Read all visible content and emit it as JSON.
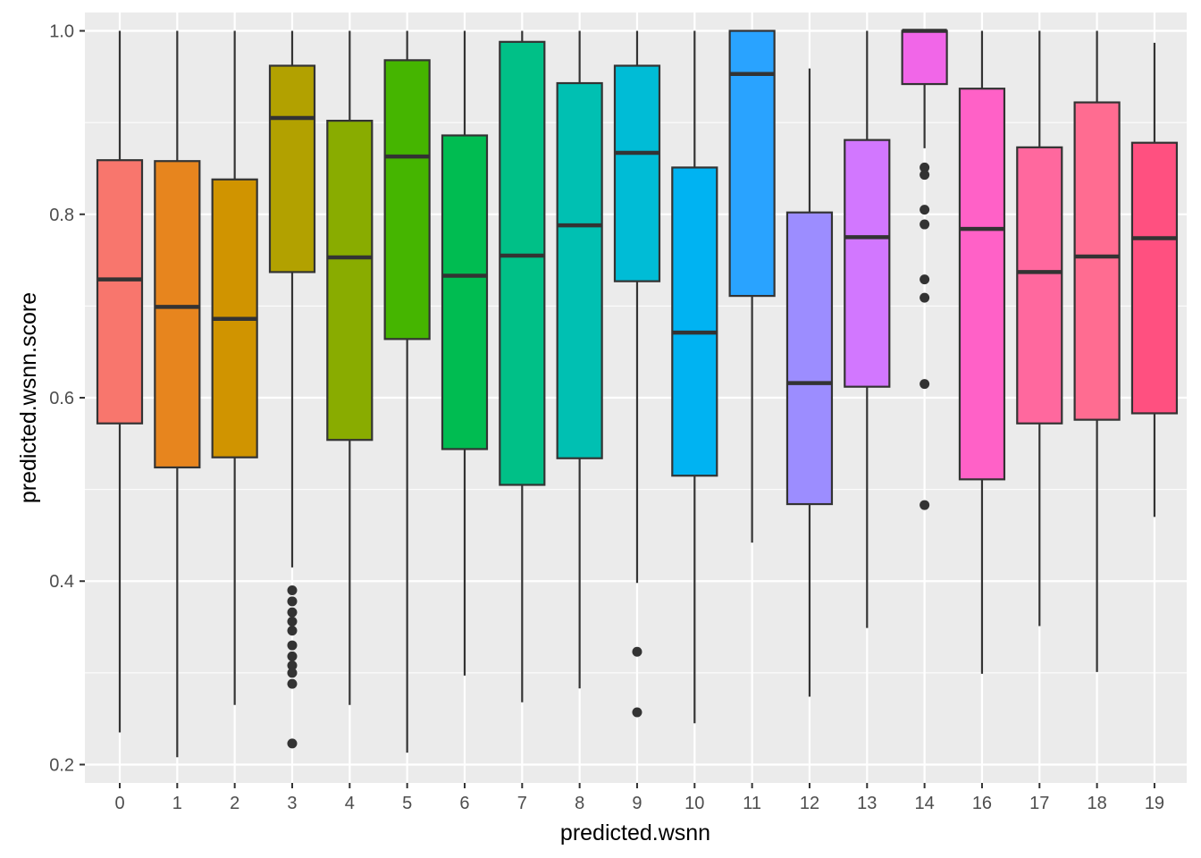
{
  "chart_data": {
    "type": "boxplot",
    "title": "",
    "xlabel": "predicted.wsnn",
    "ylabel": "predicted.wsnn.score",
    "ylim": [
      0.18,
      1.02
    ],
    "y_ticks": [
      0.2,
      0.4,
      0.6,
      0.8,
      1.0
    ],
    "y_tick_labels": [
      "0.2",
      "0.4",
      "0.6",
      "0.8",
      "1.0"
    ],
    "categories": [
      "0",
      "1",
      "2",
      "3",
      "4",
      "5",
      "6",
      "7",
      "8",
      "9",
      "10",
      "11",
      "12",
      "13",
      "14",
      "16",
      "17",
      "18",
      "19"
    ],
    "boxes": [
      {
        "category": "0",
        "color": "#F8766D",
        "whisker_low": 0.235,
        "q1": 0.572,
        "median": 0.729,
        "q3": 0.859,
        "whisker_high": 1.0,
        "outliers": []
      },
      {
        "category": "1",
        "color": "#E7851E",
        "whisker_low": 0.208,
        "q1": 0.524,
        "median": 0.699,
        "q3": 0.858,
        "whisker_high": 1.0,
        "outliers": []
      },
      {
        "category": "2",
        "color": "#D09400",
        "whisker_low": 0.265,
        "q1": 0.535,
        "median": 0.686,
        "q3": 0.838,
        "whisker_high": 1.0,
        "outliers": []
      },
      {
        "category": "3",
        "color": "#B2A100",
        "whisker_low": 0.415,
        "q1": 0.737,
        "median": 0.905,
        "q3": 0.962,
        "whisker_high": 1.0,
        "outliers": [
          0.39,
          0.378,
          0.366,
          0.356,
          0.346,
          0.33,
          0.318,
          0.308,
          0.3,
          0.288,
          0.223
        ]
      },
      {
        "category": "4",
        "color": "#89AC00",
        "whisker_low": 0.265,
        "q1": 0.554,
        "median": 0.753,
        "q3": 0.902,
        "whisker_high": 1.0,
        "outliers": []
      },
      {
        "category": "5",
        "color": "#45B500",
        "whisker_low": 0.213,
        "q1": 0.664,
        "median": 0.863,
        "q3": 0.968,
        "whisker_high": 1.0,
        "outliers": []
      },
      {
        "category": "6",
        "color": "#00BC51",
        "whisker_low": 0.297,
        "q1": 0.544,
        "median": 0.733,
        "q3": 0.886,
        "whisker_high": 1.0,
        "outliers": []
      },
      {
        "category": "7",
        "color": "#00C087",
        "whisker_low": 0.268,
        "q1": 0.505,
        "median": 0.755,
        "q3": 0.988,
        "whisker_high": 1.0,
        "outliers": []
      },
      {
        "category": "8",
        "color": "#00C0B2",
        "whisker_low": 0.283,
        "q1": 0.534,
        "median": 0.788,
        "q3": 0.943,
        "whisker_high": 1.0,
        "outliers": []
      },
      {
        "category": "9",
        "color": "#00BCD6",
        "whisker_low": 0.398,
        "q1": 0.727,
        "median": 0.867,
        "q3": 0.962,
        "whisker_high": 1.0,
        "outliers": [
          0.323,
          0.257
        ]
      },
      {
        "category": "10",
        "color": "#00B3F2",
        "whisker_low": 0.245,
        "q1": 0.515,
        "median": 0.671,
        "q3": 0.851,
        "whisker_high": 1.0,
        "outliers": []
      },
      {
        "category": "11",
        "color": "#29A3FF",
        "whisker_low": 0.442,
        "q1": 0.711,
        "median": 0.953,
        "q3": 1.0,
        "whisker_high": 1.0,
        "outliers": []
      },
      {
        "category": "12",
        "color": "#9C8DFF",
        "whisker_low": 0.274,
        "q1": 0.484,
        "median": 0.616,
        "q3": 0.802,
        "whisker_high": 0.959,
        "outliers": []
      },
      {
        "category": "13",
        "color": "#D277FF",
        "whisker_low": 0.349,
        "q1": 0.612,
        "median": 0.775,
        "q3": 0.881,
        "whisker_high": 1.0,
        "outliers": []
      },
      {
        "category": "14",
        "color": "#F166E8",
        "whisker_low": 0.872,
        "q1": 0.942,
        "median": 1.0,
        "q3": 1.0,
        "whisker_high": 1.0,
        "outliers": [
          0.851,
          0.843,
          0.805,
          0.789,
          0.729,
          0.709,
          0.615,
          0.483
        ]
      },
      {
        "category": "16",
        "color": "#FF61C7",
        "whisker_low": 0.299,
        "q1": 0.511,
        "median": 0.784,
        "q3": 0.937,
        "whisker_high": 1.0,
        "outliers": []
      },
      {
        "category": "17",
        "color": "#FF689E",
        "whisker_low": 0.351,
        "q1": 0.572,
        "median": 0.737,
        "q3": 0.873,
        "whisker_high": 1.0,
        "outliers": []
      },
      {
        "category": "18",
        "color": "#FF6C91",
        "whisker_low": 0.301,
        "q1": 0.576,
        "median": 0.754,
        "q3": 0.922,
        "whisker_high": 1.0,
        "outliers": []
      },
      {
        "category": "19",
        "color": "#FF5080",
        "whisker_low": 0.47,
        "q1": 0.583,
        "median": 0.774,
        "q3": 0.878,
        "whisker_high": 0.987,
        "outliers": []
      }
    ],
    "grid": true,
    "legend": "none"
  },
  "colors": {
    "panel_background": "#EBEBEB",
    "grid": "#FFFFFF",
    "box_outline": "#333333",
    "tick_text": "#4D4D4D",
    "axis_text": "#000000"
  }
}
